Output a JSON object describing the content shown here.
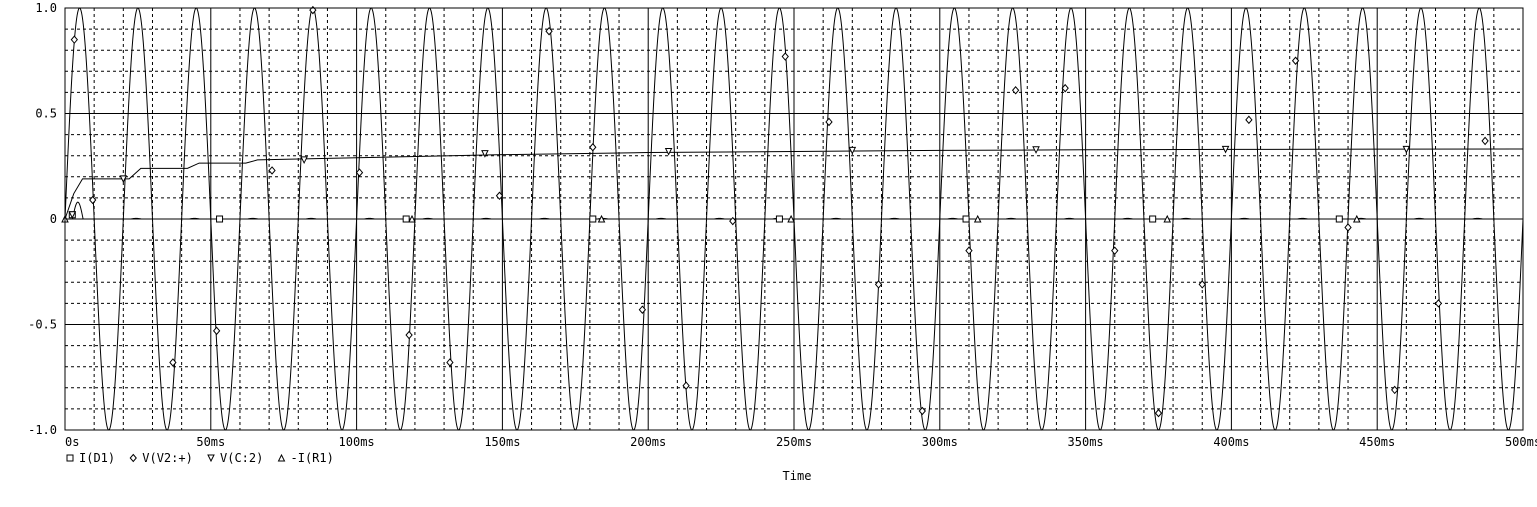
{
  "chart_data": {
    "type": "line",
    "xlabel": "Time",
    "ylabel": "",
    "xlim": [
      0,
      0.5
    ],
    "ylim": [
      -1.0,
      1.0
    ],
    "x_unit": "s",
    "grid": true,
    "legend_placement": "bottom-left",
    "x_ticks": [
      0,
      0.05,
      0.1,
      0.15,
      0.2,
      0.25,
      0.3,
      0.35,
      0.4,
      0.45,
      0.5
    ],
    "x_tick_labels": [
      "0s",
      "50ms",
      "100ms",
      "150ms",
      "200ms",
      "250ms",
      "300ms",
      "350ms",
      "400ms",
      "450ms",
      "500ms"
    ],
    "y_ticks": [
      -1.0,
      -0.5,
      0,
      0.5,
      1.0
    ],
    "y_tick_labels": [
      "-1.0",
      "-0.5",
      "0",
      "0.5",
      "1.0"
    ],
    "series": [
      {
        "name": "I(D1)",
        "marker": "square",
        "kind": "diode_pulse",
        "params": {
          "frequency_hz": 50,
          "first_peak": 0.08,
          "late_peak": 0.003
        },
        "marker_points": [
          {
            "x": 0.0025,
            "y": 0.02
          },
          {
            "x": 0.053,
            "y": 0.0
          },
          {
            "x": 0.117,
            "y": 0.0
          },
          {
            "x": 0.181,
            "y": 0.0
          },
          {
            "x": 0.245,
            "y": 0.0
          },
          {
            "x": 0.309,
            "y": 0.0
          },
          {
            "x": 0.373,
            "y": 0.0
          },
          {
            "x": 0.437,
            "y": 0.0
          }
        ]
      },
      {
        "name": "V(V2:+)",
        "marker": "diamond",
        "kind": "sine",
        "params": {
          "frequency_hz": 50,
          "amplitude": 1.0,
          "phase": 0
        },
        "marker_points": [
          {
            "x": 0.0032,
            "y": 0.85
          },
          {
            "x": 0.0095,
            "y": 0.09
          },
          {
            "x": 0.037,
            "y": -0.68
          },
          {
            "x": 0.052,
            "y": -0.53
          },
          {
            "x": 0.071,
            "y": 0.23
          },
          {
            "x": 0.085,
            "y": 0.99
          },
          {
            "x": 0.101,
            "y": 0.22
          },
          {
            "x": 0.118,
            "y": -0.55
          },
          {
            "x": 0.132,
            "y": -0.68
          },
          {
            "x": 0.149,
            "y": 0.11
          },
          {
            "x": 0.166,
            "y": 0.89
          },
          {
            "x": 0.181,
            "y": 0.34
          },
          {
            "x": 0.198,
            "y": -0.43
          },
          {
            "x": 0.213,
            "y": -0.79
          },
          {
            "x": 0.229,
            "y": -0.01
          },
          {
            "x": 0.247,
            "y": 0.77
          },
          {
            "x": 0.262,
            "y": 0.46
          },
          {
            "x": 0.279,
            "y": -0.31
          },
          {
            "x": 0.294,
            "y": -0.91
          },
          {
            "x": 0.31,
            "y": -0.15
          },
          {
            "x": 0.326,
            "y": 0.61
          },
          {
            "x": 0.343,
            "y": 0.62
          },
          {
            "x": 0.36,
            "y": -0.15
          },
          {
            "x": 0.375,
            "y": -0.92
          },
          {
            "x": 0.39,
            "y": -0.31
          },
          {
            "x": 0.406,
            "y": 0.47
          },
          {
            "x": 0.422,
            "y": 0.75
          },
          {
            "x": 0.44,
            "y": -0.04
          },
          {
            "x": 0.456,
            "y": -0.81
          },
          {
            "x": 0.471,
            "y": -0.4
          },
          {
            "x": 0.487,
            "y": 0.37
          }
        ]
      },
      {
        "name": "V(C:2)",
        "marker": "triangle-down",
        "kind": "rc_charge",
        "points": [
          {
            "x": 0,
            "y": 0
          },
          {
            "x": 0.003,
            "y": 0.12
          },
          {
            "x": 0.006,
            "y": 0.19
          },
          {
            "x": 0.022,
            "y": 0.19
          },
          {
            "x": 0.026,
            "y": 0.24
          },
          {
            "x": 0.042,
            "y": 0.24
          },
          {
            "x": 0.046,
            "y": 0.265
          },
          {
            "x": 0.062,
            "y": 0.265
          },
          {
            "x": 0.066,
            "y": 0.28
          },
          {
            "x": 0.1,
            "y": 0.29
          },
          {
            "x": 0.15,
            "y": 0.305
          },
          {
            "x": 0.2,
            "y": 0.315
          },
          {
            "x": 0.25,
            "y": 0.32
          },
          {
            "x": 0.3,
            "y": 0.325
          },
          {
            "x": 0.35,
            "y": 0.328
          },
          {
            "x": 0.4,
            "y": 0.33
          },
          {
            "x": 0.45,
            "y": 0.331
          },
          {
            "x": 0.5,
            "y": 0.332
          }
        ],
        "marker_points": [
          {
            "x": 0.0025,
            "y": 0.02
          },
          {
            "x": 0.02,
            "y": 0.19
          },
          {
            "x": 0.082,
            "y": 0.28
          },
          {
            "x": 0.144,
            "y": 0.31
          },
          {
            "x": 0.207,
            "y": 0.32
          },
          {
            "x": 0.27,
            "y": 0.325
          },
          {
            "x": 0.333,
            "y": 0.328
          },
          {
            "x": 0.398,
            "y": 0.33
          },
          {
            "x": 0.46,
            "y": 0.33
          }
        ]
      },
      {
        "name": "-I(R1)",
        "marker": "triangle-up",
        "kind": "flat",
        "params": {
          "value": 0.0
        },
        "marker_points": [
          {
            "x": 0.0,
            "y": 0.0
          },
          {
            "x": 0.119,
            "y": 0.0
          },
          {
            "x": 0.184,
            "y": 0.0
          },
          {
            "x": 0.249,
            "y": 0.0
          },
          {
            "x": 0.313,
            "y": 0.0
          },
          {
            "x": 0.378,
            "y": 0.0
          },
          {
            "x": 0.443,
            "y": 0.0
          }
        ]
      }
    ]
  }
}
